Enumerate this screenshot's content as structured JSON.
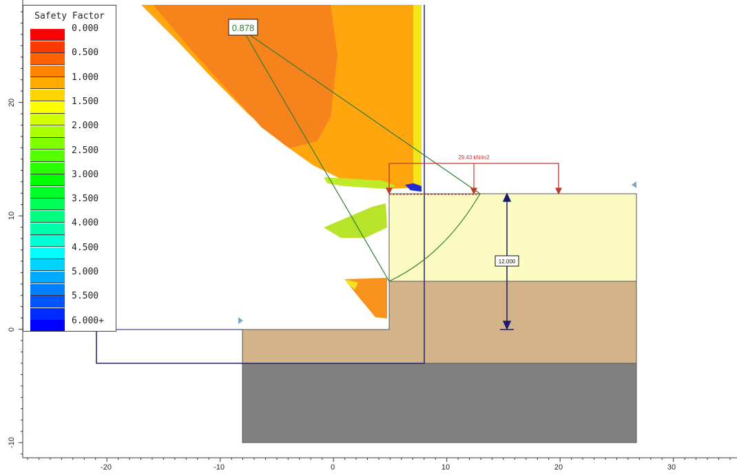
{
  "legend": {
    "title": "Safety Factor",
    "labels": [
      "0.000",
      "0.500",
      "1.000",
      "1.500",
      "2.000",
      "2.500",
      "3.000",
      "3.500",
      "4.000",
      "4.500",
      "5.000",
      "5.500",
      "6.000+"
    ],
    "colors": [
      "#ff0000",
      "#ff3a00",
      "#ff6000",
      "#ff8500",
      "#ffaa00",
      "#ffd500",
      "#ffff00",
      "#d4ff00",
      "#aaff00",
      "#7fff00",
      "#55ff00",
      "#2aff00",
      "#00ff00",
      "#00ff2a",
      "#00ff55",
      "#00ff7f",
      "#00ffaa",
      "#00ffd4",
      "#00ffff",
      "#00d4ff",
      "#00aaff",
      "#007fff",
      "#0055ff",
      "#002aff",
      "#0000ff"
    ]
  },
  "min_factor_label": "0.878",
  "load_label": "29.43 kN/m2",
  "dimension_label": "12.000",
  "x_ticks": [
    "-20",
    "-10",
    "0",
    "10",
    "20",
    "30"
  ],
  "y_ticks": [
    "20",
    "10",
    "0",
    "-10"
  ],
  "colors": {
    "upper_soil": "#fdfbc4",
    "mid_soil": "#d3b48a",
    "bedrock": "#808080",
    "search_grid": "#1f1f7a",
    "slip_surface": "#2e7d32",
    "load": "#c0392b",
    "dimension": "#1a1a6e"
  }
}
